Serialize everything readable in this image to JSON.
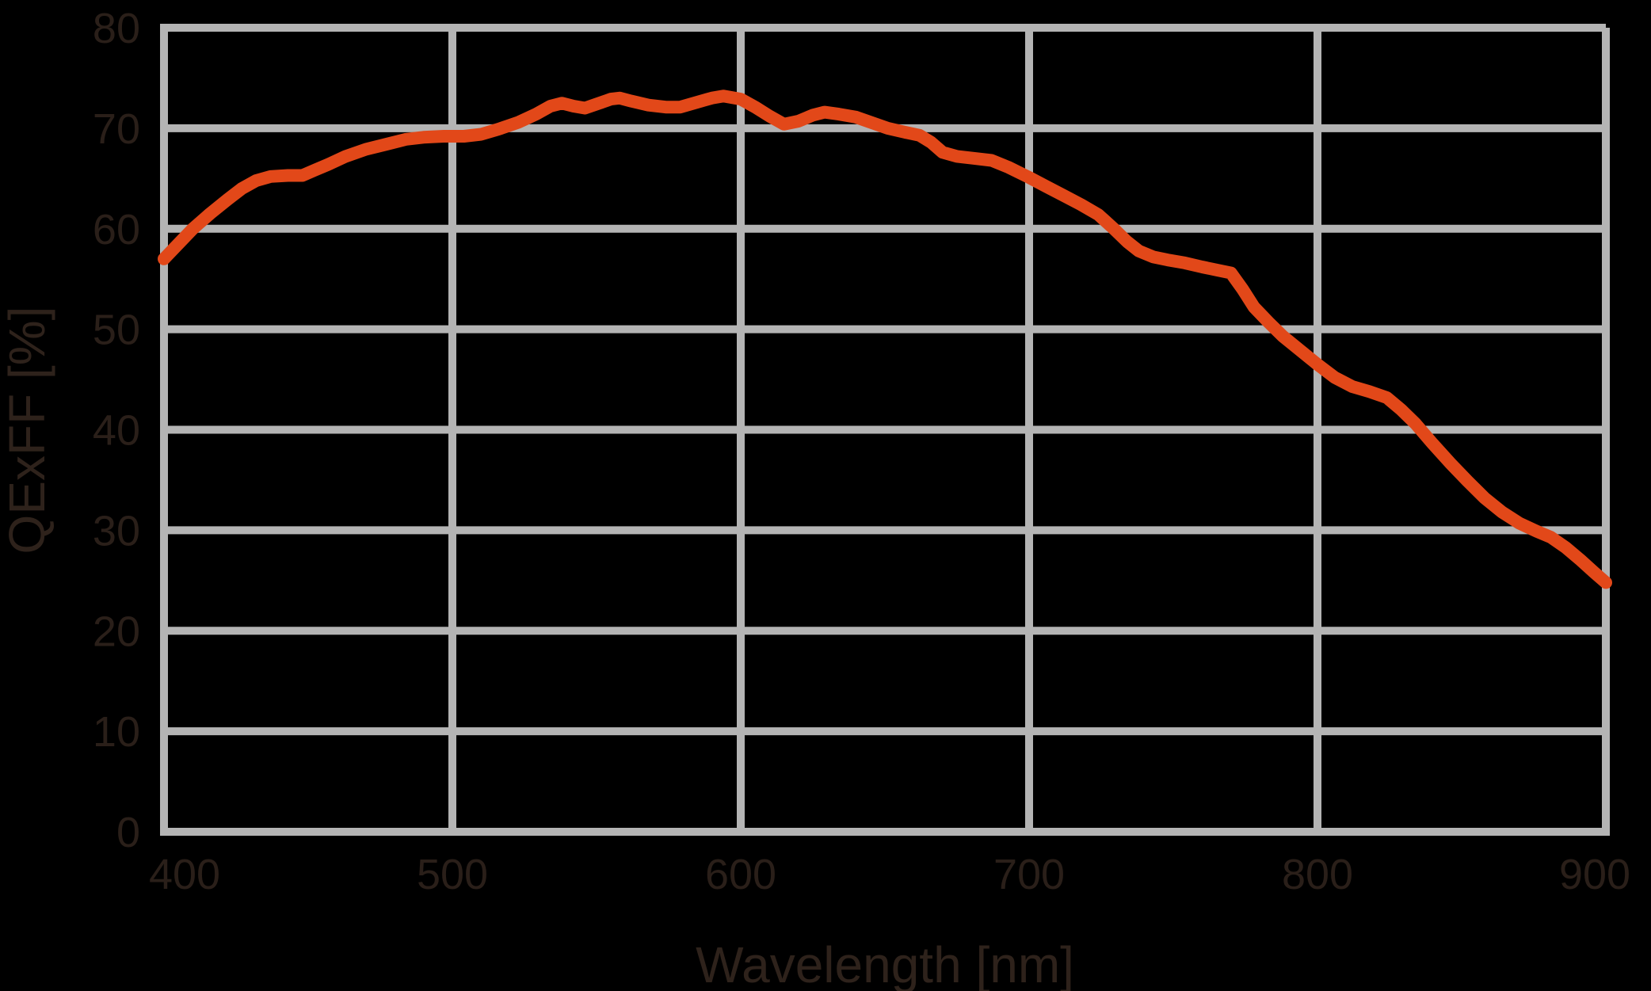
{
  "chart_data": {
    "type": "line",
    "title": "",
    "xlabel": "Wavelength [nm]",
    "ylabel": "QExFF [%]",
    "xlim": [
      400,
      900
    ],
    "ylim": [
      0,
      80
    ],
    "xticks": [
      400,
      500,
      600,
      700,
      800,
      900
    ],
    "yticks": [
      0,
      10,
      20,
      30,
      40,
      50,
      60,
      70,
      80
    ],
    "grid": true,
    "legend": "none",
    "colors": {
      "background": "#000000",
      "grid": "#B4B4B4",
      "tick_text": "#2A1F19",
      "title_text": "#2E221B",
      "line": "#E24819"
    },
    "series": [
      {
        "name": "QExFF",
        "color": "#E24819",
        "points": [
          [
            400,
            57.0
          ],
          [
            404,
            58.2
          ],
          [
            410,
            60.0
          ],
          [
            416,
            61.5
          ],
          [
            422,
            62.9
          ],
          [
            427,
            64.0
          ],
          [
            432,
            64.8
          ],
          [
            437,
            65.2
          ],
          [
            443,
            65.3
          ],
          [
            448,
            65.3
          ],
          [
            452,
            65.8
          ],
          [
            457,
            66.4
          ],
          [
            463,
            67.2
          ],
          [
            470,
            67.9
          ],
          [
            477,
            68.4
          ],
          [
            484,
            68.9
          ],
          [
            490,
            69.1
          ],
          [
            497,
            69.2
          ],
          [
            504,
            69.2
          ],
          [
            510,
            69.4
          ],
          [
            516,
            69.9
          ],
          [
            523,
            70.6
          ],
          [
            529,
            71.4
          ],
          [
            534,
            72.2
          ],
          [
            538,
            72.5
          ],
          [
            542,
            72.2
          ],
          [
            546,
            72.0
          ],
          [
            551,
            72.5
          ],
          [
            555,
            72.9
          ],
          [
            558,
            73.0
          ],
          [
            562,
            72.7
          ],
          [
            568,
            72.3
          ],
          [
            574,
            72.1
          ],
          [
            579,
            72.1
          ],
          [
            585,
            72.6
          ],
          [
            590,
            73.0
          ],
          [
            594,
            73.2
          ],
          [
            600,
            72.9
          ],
          [
            605,
            72.1
          ],
          [
            610,
            71.2
          ],
          [
            615,
            70.4
          ],
          [
            620,
            70.7
          ],
          [
            625,
            71.3
          ],
          [
            629,
            71.6
          ],
          [
            634,
            71.4
          ],
          [
            640,
            71.1
          ],
          [
            645,
            70.6
          ],
          [
            651,
            70.0
          ],
          [
            657,
            69.6
          ],
          [
            662,
            69.3
          ],
          [
            666,
            68.6
          ],
          [
            670,
            67.6
          ],
          [
            675,
            67.2
          ],
          [
            681,
            67.0
          ],
          [
            687,
            66.8
          ],
          [
            693,
            66.1
          ],
          [
            700,
            65.1
          ],
          [
            706,
            64.2
          ],
          [
            712,
            63.3
          ],
          [
            718,
            62.4
          ],
          [
            724,
            61.4
          ],
          [
            729,
            60.1
          ],
          [
            734,
            58.7
          ],
          [
            738,
            57.8
          ],
          [
            743,
            57.2
          ],
          [
            748,
            56.9
          ],
          [
            754,
            56.6
          ],
          [
            760,
            56.2
          ],
          [
            765,
            55.9
          ],
          [
            770,
            55.6
          ],
          [
            774,
            54.0
          ],
          [
            778,
            52.2
          ],
          [
            783,
            50.7
          ],
          [
            788,
            49.3
          ],
          [
            794,
            47.9
          ],
          [
            800,
            46.5
          ],
          [
            806,
            45.2
          ],
          [
            812,
            44.3
          ],
          [
            818,
            43.8
          ],
          [
            824,
            43.2
          ],
          [
            829,
            42.0
          ],
          [
            834,
            40.6
          ],
          [
            840,
            38.6
          ],
          [
            846,
            36.7
          ],
          [
            852,
            34.9
          ],
          [
            858,
            33.2
          ],
          [
            864,
            31.8
          ],
          [
            870,
            30.7
          ],
          [
            876,
            29.9
          ],
          [
            881,
            29.3
          ],
          [
            886,
            28.3
          ],
          [
            891,
            27.1
          ],
          [
            896,
            25.8
          ],
          [
            900,
            24.8
          ]
        ]
      }
    ]
  }
}
